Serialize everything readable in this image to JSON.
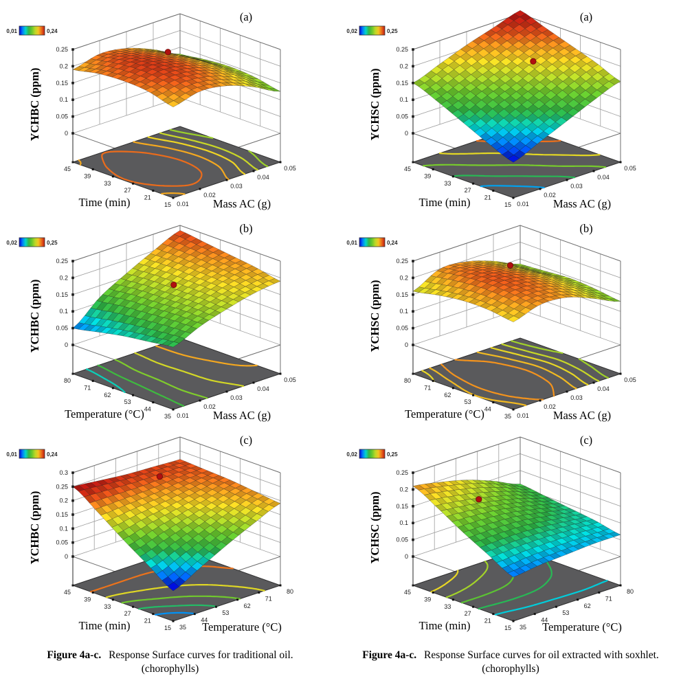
{
  "figure": {
    "captions": [
      {
        "label": "Figure 4a-c.",
        "text": "Response Surface curves for traditional oil.",
        "subtext": "(chorophylls)"
      },
      {
        "label": "Figure 4a-c.",
        "text": "Response Surface curves for oil extracted with soxhlet.",
        "subtext": "(chorophylls)"
      }
    ]
  },
  "colors": {
    "floor_plane": "#5a5a5c",
    "optimum_marker": "#b01010",
    "box_grid": "#9d9d9d",
    "box_edge": "#6e6e6e",
    "colormap_low": "#0000cd",
    "colormap_mid": "#2db43c",
    "colormap_high": "#bc1912"
  },
  "chart_data": [
    {
      "type": "surface3d",
      "panel_label": "(a)",
      "z_label": "YCHBC (ppm)",
      "colorbar": {
        "min_label": "0,01",
        "max_label": "0,24",
        "min": 0.01,
        "max": 0.24
      },
      "z_axis_max": 0.25,
      "z_ticks": [
        "0.25",
        "0.2",
        "0.15",
        "0.1",
        "0.05",
        "0"
      ],
      "left_axis": {
        "label": "Time (min)",
        "ticks": [
          "45",
          "39",
          "33",
          "27",
          "21",
          "15"
        ]
      },
      "right_axis": {
        "label": "Mass AC (g)",
        "ticks": [
          "0.01",
          "0.02",
          "0.03",
          "0.04",
          "0.05"
        ]
      },
      "surface_grid_axes": {
        "rows": "Time 15 to 45 (front to back-left)",
        "cols": "Mass AC 0.01 to 0.05"
      },
      "surface_grid": [
        [
          0.185,
          0.205,
          0.195,
          0.165,
          0.125
        ],
        [
          0.205,
          0.22,
          0.21,
          0.18,
          0.14
        ],
        [
          0.21,
          0.228,
          0.215,
          0.185,
          0.145
        ],
        [
          0.205,
          0.222,
          0.21,
          0.18,
          0.14
        ],
        [
          0.19,
          0.21,
          0.2,
          0.17,
          0.13
        ]
      ],
      "optimum_dot": {
        "u": 0.7,
        "v": 0.8
      },
      "contour_count": 5
    },
    {
      "type": "surface3d",
      "panel_label": "(a)",
      "z_label": "YCHSC (ppm)",
      "colorbar": {
        "min_label": "0,02",
        "max_label": "0,25",
        "min": 0.02,
        "max": 0.25
      },
      "z_axis_max": 0.25,
      "z_ticks": [
        "0.25",
        "0.2",
        "0.15",
        "0.1",
        "0.05",
        "0"
      ],
      "left_axis": {
        "label": "Time (min)",
        "ticks": [
          "45",
          "39",
          "33",
          "27",
          "21",
          "15"
        ]
      },
      "right_axis": {
        "label": "Mass AC (g)",
        "ticks": [
          "0.01",
          "0.02",
          "0.03",
          "0.04",
          "0.05"
        ]
      },
      "surface_grid_axes": {
        "rows": "Time 15 to 45 (front to back-left)",
        "cols": "Mass AC 0.01 to 0.05"
      },
      "surface_grid": [
        [
          0.02,
          0.055,
          0.09,
          0.125,
          0.155
        ],
        [
          0.05,
          0.085,
          0.12,
          0.155,
          0.185
        ],
        [
          0.085,
          0.12,
          0.15,
          0.185,
          0.21
        ],
        [
          0.12,
          0.15,
          0.18,
          0.21,
          0.235
        ],
        [
          0.15,
          0.18,
          0.21,
          0.235,
          0.26
        ]
      ],
      "optimum_dot": {
        "u": 0.7,
        "v": 0.55
      },
      "contour_count": 5
    },
    {
      "type": "surface3d",
      "panel_label": "(b)",
      "z_label": "YCHBC (ppm)",
      "colorbar": {
        "min_label": "0,02",
        "max_label": "0,25",
        "min": 0.02,
        "max": 0.25
      },
      "z_axis_max": 0.25,
      "z_ticks": [
        "0.25",
        "0.2",
        "0.15",
        "0.1",
        "0.05",
        "0"
      ],
      "left_axis": {
        "label": "Temperature (°C)",
        "ticks": [
          "80",
          "71",
          "62",
          "53",
          "44",
          "35"
        ]
      },
      "right_axis": {
        "label": "Mass AC (g)",
        "ticks": [
          "0.01",
          "0.02",
          "0.03",
          "0.04",
          "0.05"
        ]
      },
      "surface_grid_axes": {
        "rows": "Temperature 35 to 80 (front to back-left)",
        "cols": "Mass AC 0.01 to 0.05"
      },
      "surface_grid": [
        [
          0.1,
          0.135,
          0.16,
          0.18,
          0.19
        ],
        [
          0.09,
          0.135,
          0.165,
          0.19,
          0.205
        ],
        [
          0.08,
          0.13,
          0.165,
          0.195,
          0.215
        ],
        [
          0.065,
          0.125,
          0.165,
          0.2,
          0.225
        ],
        [
          0.05,
          0.115,
          0.16,
          0.2,
          0.235
        ]
      ],
      "optimum_dot": {
        "u": 0.52,
        "v": 0.55
      },
      "contour_count": 5
    },
    {
      "type": "surface3d",
      "panel_label": "(b)",
      "z_label": "YCHSC (ppm)",
      "colorbar": {
        "min_label": "0,01",
        "max_label": "0,24",
        "min": 0.01,
        "max": 0.24
      },
      "z_axis_max": 0.25,
      "z_ticks": [
        "0.25",
        "0.2",
        "0.15",
        "0.1",
        "0.05",
        "0"
      ],
      "left_axis": {
        "label": "Temperature (°C)",
        "ticks": [
          "80",
          "71",
          "62",
          "53",
          "44",
          "35"
        ]
      },
      "right_axis": {
        "label": "Mass AC (g)",
        "ticks": [
          "0.01",
          "0.02",
          "0.03",
          "0.04",
          "0.05"
        ]
      },
      "surface_grid_axes": {
        "rows": "Temperature 35 to 80 (front to back-left)",
        "cols": "Mass AC 0.01 to 0.05"
      },
      "surface_grid": [
        [
          0.175,
          0.2,
          0.195,
          0.165,
          0.13
        ],
        [
          0.185,
          0.21,
          0.205,
          0.175,
          0.14
        ],
        [
          0.185,
          0.215,
          0.21,
          0.18,
          0.145
        ],
        [
          0.175,
          0.21,
          0.205,
          0.175,
          0.14
        ],
        [
          0.16,
          0.2,
          0.195,
          0.17,
          0.135
        ]
      ],
      "optimum_dot": {
        "u": 0.72,
        "v": 0.8
      },
      "contour_count": 5
    },
    {
      "type": "surface3d",
      "panel_label": "(c)",
      "z_label": "YCHBC (ppm)",
      "colorbar": {
        "min_label": "0,01",
        "max_label": "0,24",
        "min": 0.01,
        "max": 0.24
      },
      "z_axis_max": 0.3,
      "z_ticks": [
        "0.3",
        "0.25",
        "0.2",
        "0.15",
        "0.1",
        "0.05",
        "0"
      ],
      "left_axis": {
        "label": "Time (min)",
        "ticks": [
          "45",
          "39",
          "33",
          "27",
          "21",
          "15"
        ]
      },
      "right_axis": {
        "label": "Temperature (°C)",
        "ticks": [
          "35",
          "44",
          "53",
          "62",
          "71",
          "80"
        ]
      },
      "surface_grid_axes": {
        "rows": "Time 15 to 45 (front to back-left)",
        "cols": "Temperature 35 to 80"
      },
      "surface_grid": [
        [
          0.005,
          0.055,
          0.105,
          0.15,
          0.19
        ],
        [
          0.065,
          0.1,
          0.135,
          0.17,
          0.2
        ],
        [
          0.125,
          0.15,
          0.17,
          0.19,
          0.21
        ],
        [
          0.19,
          0.195,
          0.2,
          0.21,
          0.215
        ],
        [
          0.25,
          0.24,
          0.23,
          0.225,
          0.22
        ]
      ],
      "optimum_dot": {
        "u": 0.67,
        "v": 0.85
      },
      "contour_count": 5
    },
    {
      "type": "surface3d",
      "panel_label": "(c)",
      "z_label": "YCHSC (ppm)",
      "colorbar": {
        "min_label": "0,02",
        "max_label": "0,25",
        "min": 0.02,
        "max": 0.25
      },
      "z_axis_max": 0.25,
      "z_ticks": [
        "0.25",
        "0.2",
        "0.15",
        "0.1",
        "0.05",
        "0"
      ],
      "left_axis": {
        "label": "Time (min)",
        "ticks": [
          "45",
          "39",
          "33",
          "27",
          "21",
          "15"
        ]
      },
      "right_axis": {
        "label": "Temperature (°C)",
        "ticks": [
          "35",
          "44",
          "53",
          "62",
          "71",
          "80"
        ]
      },
      "surface_grid_axes": {
        "rows": "Time 15 to 45 (front to back-left)",
        "cols": "Temperature 35 to 80"
      },
      "surface_grid": [
        [
          0.045,
          0.055,
          0.06,
          0.065,
          0.065
        ],
        [
          0.085,
          0.09,
          0.09,
          0.085,
          0.08
        ],
        [
          0.125,
          0.125,
          0.12,
          0.105,
          0.09
        ],
        [
          0.17,
          0.16,
          0.145,
          0.125,
          0.1
        ],
        [
          0.21,
          0.195,
          0.175,
          0.145,
          0.11
        ]
      ],
      "optimum_dot": {
        "u": 0.38,
        "v": 0.75
      },
      "contour_count": 5
    }
  ]
}
